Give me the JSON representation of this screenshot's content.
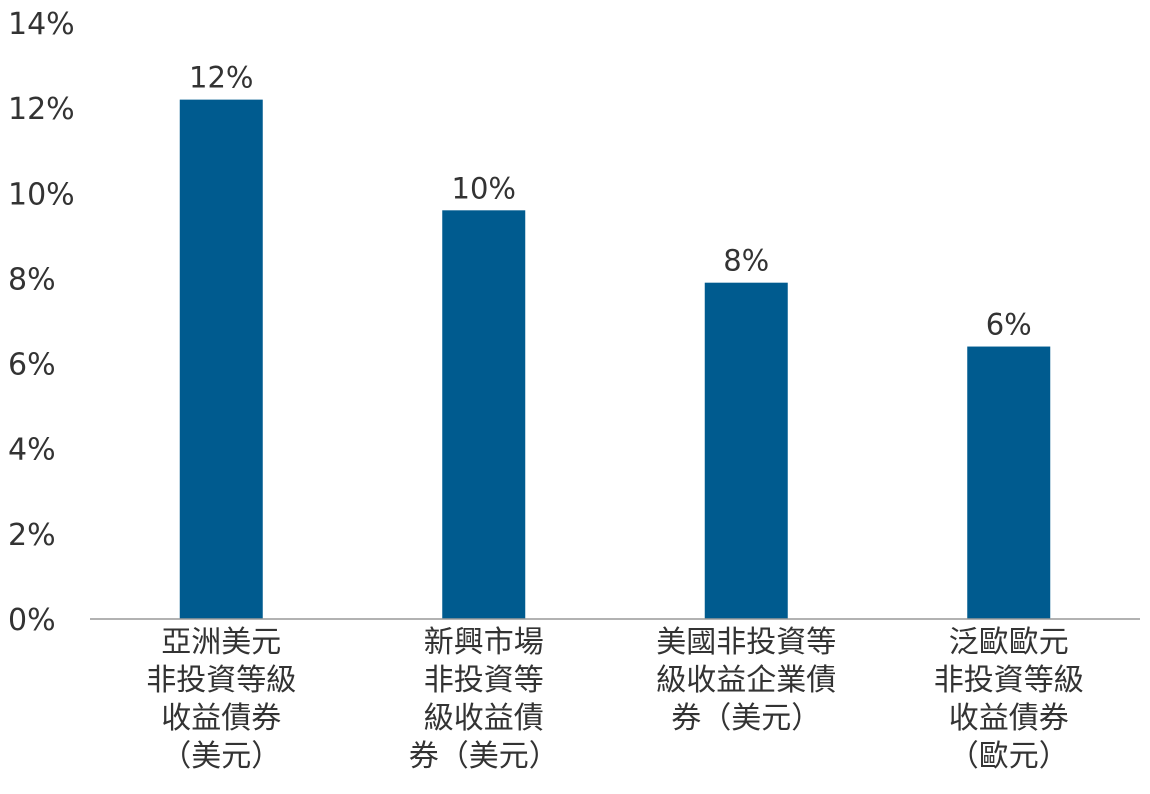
{
  "chart_data": {
    "type": "bar",
    "categories": [
      [
        "亞洲美元",
        "非投資等級",
        "收益債券",
        "（美元）"
      ],
      [
        "新興市場",
        "非投資等",
        "級收益債",
        "券（美元）"
      ],
      [
        "美國非投資等",
        "級收益企業債",
        "券（美元）"
      ],
      [
        "泛歐歐元",
        "非投資等級",
        "收益債券",
        "（歐元）"
      ]
    ],
    "values": [
      12.2,
      9.6,
      7.9,
      6.4
    ],
    "data_labels": [
      "12%",
      "10%",
      "8%",
      "6%"
    ],
    "ylim": [
      0,
      14
    ],
    "y_ticks": [
      {
        "value": 0,
        "label": "0%"
      },
      {
        "value": 2,
        "label": "2%"
      },
      {
        "value": 4,
        "label": "4%"
      },
      {
        "value": 6,
        "label": "6%"
      },
      {
        "value": 8,
        "label": "8%"
      },
      {
        "value": 10,
        "label": "10%"
      },
      {
        "value": 12,
        "label": "12%"
      },
      {
        "value": 14,
        "label": "14%"
      }
    ],
    "grid": false,
    "bar_color": "#005b8f",
    "axis_color": "#999999"
  }
}
